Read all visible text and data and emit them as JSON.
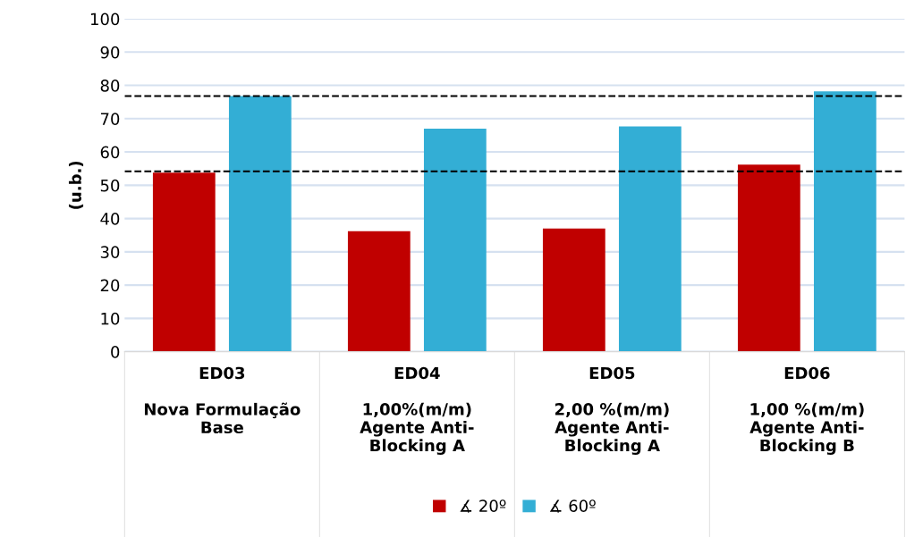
{
  "chart_data": {
    "type": "bar",
    "ylabel": "(u.b.)",
    "categories": [
      "ED03\n\nNova Formulação\nBase",
      "ED04\n\n1,00%(m/m)\nAgente Anti-\nBlocking A",
      "ED05\n\n2,00 %(m/m)\nAgente Anti-\nBlocking A",
      "ED06\n\n1,00 %(m/m)\nAgente Anti-\nBlocking B"
    ],
    "series": [
      {
        "name": "∡ 20º",
        "color": "#c00000",
        "values": [
          53.8,
          36.2,
          37.0,
          56.2
        ]
      },
      {
        "name": "∡ 60º",
        "color": "#33aed5",
        "values": [
          76.8,
          67.0,
          67.7,
          78.2
        ]
      }
    ],
    "ylim": [
      0,
      100
    ],
    "yticks": [
      0,
      10,
      20,
      30,
      40,
      50,
      60,
      70,
      80,
      90,
      100
    ],
    "ref_lines": [
      {
        "axis": "y",
        "value": 76.8,
        "color": "#000000",
        "line_style": "dashed"
      },
      {
        "axis": "y",
        "value": 54.2,
        "color": "#000000",
        "line_style": "dashed"
      }
    ],
    "grid": "y",
    "legend": "bottom"
  }
}
